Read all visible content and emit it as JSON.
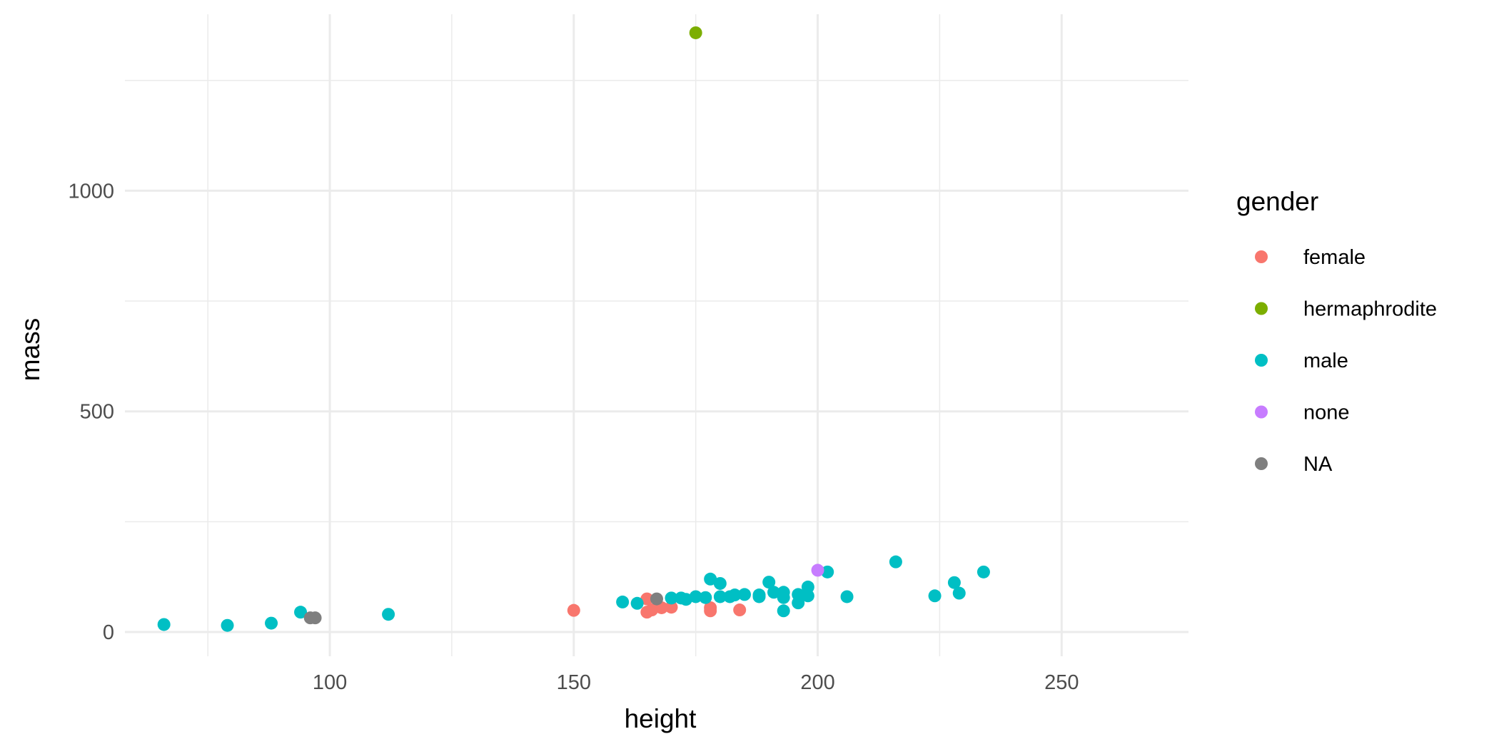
{
  "chart_data": {
    "type": "scatter",
    "title": "",
    "xlabel": "height",
    "ylabel": "mass",
    "xlim": [
      58,
      276
    ],
    "ylim": [
      -55,
      1400
    ],
    "x_ticks": [
      100,
      150,
      200,
      250
    ],
    "y_ticks": [
      0,
      500,
      1000
    ],
    "x_minor_ticks": [
      75,
      125,
      175,
      225
    ],
    "y_minor_ticks": [
      250,
      750,
      1250
    ],
    "grid": true,
    "legend": {
      "title": "gender",
      "position": "right",
      "entries": [
        "female",
        "hermaphrodite",
        "male",
        "none",
        "NA"
      ]
    },
    "colors": {
      "female": "#F8766D",
      "hermaphrodite": "#7CAE00",
      "male": "#00BFC4",
      "none": "#C77CFF",
      "NA": "#7F7F7F"
    },
    "series": [
      {
        "name": "female",
        "points": [
          [
            150,
            49
          ],
          [
            165,
            45
          ],
          [
            165,
            75
          ],
          [
            166,
            50
          ],
          [
            168,
            55
          ],
          [
            170,
            56.2
          ],
          [
            178,
            55
          ],
          [
            178,
            48
          ],
          [
            184,
            50
          ]
        ]
      },
      {
        "name": "hermaphrodite",
        "points": [
          [
            175,
            1358
          ]
        ]
      },
      {
        "name": "male",
        "points": [
          [
            66,
            17
          ],
          [
            79,
            15
          ],
          [
            88,
            20
          ],
          [
            94,
            45
          ],
          [
            112,
            40
          ],
          [
            160,
            68
          ],
          [
            163,
            65
          ],
          [
            170,
            77
          ],
          [
            172,
            77
          ],
          [
            173,
            74
          ],
          [
            175,
            80
          ],
          [
            177,
            78
          ],
          [
            178,
            120
          ],
          [
            180,
            110
          ],
          [
            180,
            80
          ],
          [
            182,
            80
          ],
          [
            183,
            84
          ],
          [
            185,
            85
          ],
          [
            188,
            84
          ],
          [
            188,
            80
          ],
          [
            190,
            113
          ],
          [
            191,
            90
          ],
          [
            193,
            90
          ],
          [
            193,
            48
          ],
          [
            193,
            78
          ],
          [
            196,
            66
          ],
          [
            196,
            85
          ],
          [
            198,
            102
          ],
          [
            198,
            82
          ],
          [
            202,
            136
          ],
          [
            206,
            80
          ],
          [
            216,
            159
          ],
          [
            224,
            82
          ],
          [
            228,
            112
          ],
          [
            229,
            88
          ],
          [
            234,
            136
          ]
        ]
      },
      {
        "name": "none",
        "points": [
          [
            200,
            140
          ]
        ]
      },
      {
        "name": "NA",
        "points": [
          [
            96,
            32
          ],
          [
            97,
            32
          ],
          [
            167,
            75
          ]
        ]
      }
    ]
  }
}
